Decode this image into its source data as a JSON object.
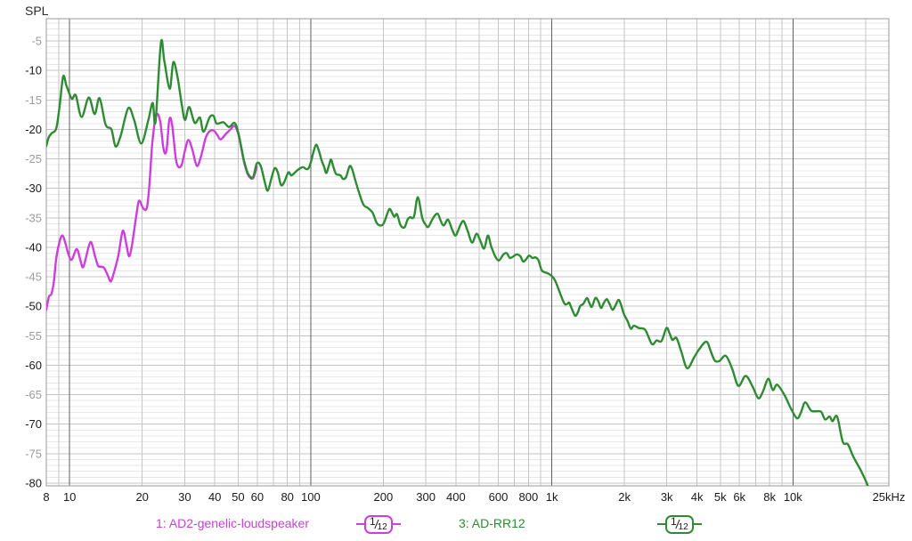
{
  "title": "SPL",
  "colors": {
    "series1": "#cc3edd",
    "series2": "#2e8b33",
    "label_dark": "#1a1a1a",
    "label_gray": "#9b9b9b",
    "grid_minor": "#e8e8e8",
    "grid_major": "#c5c5c5",
    "grid_decade": "#5f5f5f",
    "plot_border": "#9a9a9a"
  },
  "legend": {
    "items": [
      {
        "label": "1: AD2-genelic-loudspeaker",
        "badge_numerator": "1",
        "badge_denominator": "12",
        "color": "#cc3edd"
      },
      {
        "label": "3: AD-RR12",
        "badge_numerator": "1",
        "badge_denominator": "12",
        "color": "#2e8b33"
      }
    ]
  },
  "chart_data": {
    "type": "line",
    "title": "SPL",
    "x_axis": {
      "scale": "log",
      "min": 8,
      "max": 25000,
      "unit": "Hz",
      "tick_labels": [
        {
          "f": 8,
          "label": "8"
        },
        {
          "f": 10,
          "label": "10"
        },
        {
          "f": 20,
          "label": "20"
        },
        {
          "f": 30,
          "label": "30"
        },
        {
          "f": 40,
          "label": "40"
        },
        {
          "f": 50,
          "label": "50"
        },
        {
          "f": 60,
          "label": "60"
        },
        {
          "f": 80,
          "label": "80"
        },
        {
          "f": 100,
          "label": "100"
        },
        {
          "f": 200,
          "label": "200"
        },
        {
          "f": 300,
          "label": "300"
        },
        {
          "f": 400,
          "label": "400"
        },
        {
          "f": 600,
          "label": "600"
        },
        {
          "f": 800,
          "label": "800"
        },
        {
          "f": 1000,
          "label": "1k"
        },
        {
          "f": 2000,
          "label": "2k"
        },
        {
          "f": 3000,
          "label": "3k"
        },
        {
          "f": 4000,
          "label": "4k"
        },
        {
          "f": 5000,
          "label": "5k"
        },
        {
          "f": 6000,
          "label": "6k"
        },
        {
          "f": 8000,
          "label": "8k"
        },
        {
          "f": 10000,
          "label": "10k"
        },
        {
          "f": 25000,
          "label": "25kHz"
        }
      ],
      "gridlines": [
        9,
        10,
        20,
        30,
        40,
        50,
        60,
        70,
        80,
        90,
        100,
        200,
        300,
        400,
        500,
        600,
        700,
        800,
        900,
        1000,
        2000,
        3000,
        4000,
        5000,
        6000,
        7000,
        8000,
        9000,
        10000,
        20000
      ],
      "emphasized_gridlines": [
        10,
        100,
        1000,
        10000
      ]
    },
    "y_axis": {
      "unit": "dB SPL",
      "min": -80.45,
      "max": -1.2,
      "major_step": 5,
      "minor_step": 1,
      "tick_values": [
        -5,
        -10,
        -15,
        -20,
        -25,
        -30,
        -35,
        -40,
        -45,
        -50,
        -55,
        -60,
        -65,
        -70,
        -75,
        -80
      ]
    },
    "series": [
      {
        "name": "1: AD2-genelic-loudspeaker",
        "color": "#cc3edd",
        "smoothing": "1/12",
        "points": [
          [
            8.0,
            -50.6
          ],
          [
            8.2,
            -48.4
          ],
          [
            8.4,
            -47.9
          ],
          [
            8.6,
            -45.8
          ],
          [
            8.8,
            -41.8
          ],
          [
            9.1,
            -38.9
          ],
          [
            9.35,
            -38.0
          ],
          [
            9.6,
            -39.3
          ],
          [
            9.9,
            -41.3
          ],
          [
            10.2,
            -42.1
          ],
          [
            10.7,
            -40.3
          ],
          [
            11.1,
            -42.3
          ],
          [
            11.4,
            -43.3
          ],
          [
            12.0,
            -39.8
          ],
          [
            12.3,
            -39.2
          ],
          [
            12.7,
            -41.3
          ],
          [
            13.1,
            -43.1
          ],
          [
            13.5,
            -43.3
          ],
          [
            13.9,
            -43.5
          ],
          [
            14.4,
            -44.8
          ],
          [
            14.8,
            -45.8
          ],
          [
            15.2,
            -44.5
          ],
          [
            15.9,
            -41.5
          ],
          [
            16.6,
            -37.2
          ],
          [
            17.2,
            -39.6
          ],
          [
            17.6,
            -41.5
          ],
          [
            18.0,
            -40.4
          ],
          [
            18.4,
            -37.9
          ],
          [
            18.9,
            -34.6
          ],
          [
            19.4,
            -32.1
          ],
          [
            20.2,
            -33.4
          ],
          [
            20.9,
            -33.3
          ],
          [
            21.4,
            -29.5
          ],
          [
            22.0,
            -22.5
          ],
          [
            22.8,
            -17.6
          ],
          [
            23.7,
            -18.5
          ],
          [
            24.5,
            -23.3
          ],
          [
            25.2,
            -23.6
          ],
          [
            25.9,
            -18.4
          ],
          [
            26.6,
            -19.2
          ],
          [
            27.7,
            -25.5
          ],
          [
            29.0,
            -26.2
          ],
          [
            30.1,
            -23.5
          ],
          [
            31.1,
            -21.8
          ],
          [
            32.3,
            -23.5
          ],
          [
            33.7,
            -26.2
          ],
          [
            35.1,
            -24.5
          ],
          [
            36.6,
            -21.5
          ],
          [
            38.1,
            -20.3
          ],
          [
            39.6,
            -20.2
          ],
          [
            40.9,
            -20.9
          ],
          [
            42.3,
            -21.7
          ],
          [
            44.6,
            -20.7
          ],
          [
            46.5,
            -20.0
          ],
          [
            48.3,
            -19.4
          ],
          [
            50.0,
            -20.7
          ],
          [
            51.5,
            -23.2
          ],
          [
            53.0,
            -25.7
          ],
          [
            55.1,
            -27.8
          ],
          [
            57.6,
            -28.3
          ],
          [
            59.7,
            -26.4
          ]
        ]
      },
      {
        "name": "3: AD-RR12",
        "color": "#2e8b33",
        "smoothing": "1/12",
        "points": [
          [
            8.0,
            -22.8
          ],
          [
            8.2,
            -21.3
          ],
          [
            8.45,
            -20.6
          ],
          [
            8.8,
            -19.8
          ],
          [
            9.1,
            -15.8
          ],
          [
            9.4,
            -11.0
          ],
          [
            9.7,
            -12.6
          ],
          [
            10.2,
            -14.8
          ],
          [
            10.6,
            -14.2
          ],
          [
            11.2,
            -17.9
          ],
          [
            12.0,
            -14.6
          ],
          [
            12.7,
            -17.4
          ],
          [
            13.3,
            -14.7
          ],
          [
            14.1,
            -19.2
          ],
          [
            14.9,
            -20.0
          ],
          [
            15.5,
            -22.9
          ],
          [
            16.3,
            -21.0
          ],
          [
            17.5,
            -16.4
          ],
          [
            18.5,
            -18.4
          ],
          [
            19.8,
            -22.4
          ],
          [
            21.2,
            -18.4
          ],
          [
            22.1,
            -15.5
          ],
          [
            22.7,
            -18.7
          ],
          [
            23.9,
            -5.3
          ],
          [
            24.7,
            -8.4
          ],
          [
            26.0,
            -13.1
          ],
          [
            26.9,
            -8.6
          ],
          [
            28.0,
            -11.1
          ],
          [
            29.2,
            -15.9
          ],
          [
            30.1,
            -18.4
          ],
          [
            31.3,
            -16.2
          ],
          [
            33.0,
            -18.9
          ],
          [
            34.7,
            -18.0
          ],
          [
            35.9,
            -20.4
          ],
          [
            38.0,
            -18.0
          ],
          [
            39.5,
            -17.7
          ],
          [
            40.7,
            -19.0
          ],
          [
            43.4,
            -18.8
          ],
          [
            45.8,
            -19.6
          ],
          [
            48.3,
            -18.9
          ],
          [
            50.0,
            -20.5
          ],
          [
            51.5,
            -23.0
          ],
          [
            53.0,
            -25.5
          ],
          [
            55.1,
            -27.6
          ],
          [
            57.6,
            -28.1
          ],
          [
            59.7,
            -25.8
          ],
          [
            62.0,
            -26.2
          ],
          [
            64.5,
            -29.0
          ],
          [
            66.3,
            -30.4
          ],
          [
            68.5,
            -28.5
          ],
          [
            70.8,
            -26.6
          ],
          [
            73.0,
            -27.3
          ],
          [
            75.2,
            -29.4
          ],
          [
            77.5,
            -29.0
          ],
          [
            80.7,
            -27.3
          ],
          [
            83.0,
            -27.8
          ],
          [
            86.0,
            -27.3
          ],
          [
            88.8,
            -26.8
          ],
          [
            92.6,
            -26.4
          ],
          [
            95.5,
            -26.7
          ],
          [
            98.0,
            -26.6
          ],
          [
            100.5,
            -25.3
          ],
          [
            102.7,
            -23.8
          ],
          [
            105.3,
            -22.6
          ],
          [
            108.0,
            -23.6
          ],
          [
            111.0,
            -25.3
          ],
          [
            113.5,
            -26.3
          ],
          [
            116.0,
            -27.4
          ],
          [
            119.0,
            -26.1
          ],
          [
            121.4,
            -25.1
          ],
          [
            124.0,
            -26.3
          ],
          [
            127.0,
            -27.5
          ],
          [
            130.0,
            -27.7
          ],
          [
            133.0,
            -27.8
          ],
          [
            136.0,
            -28.4
          ],
          [
            140.0,
            -28.1
          ],
          [
            144.8,
            -26.3
          ],
          [
            148.0,
            -26.6
          ],
          [
            152.0,
            -28.2
          ],
          [
            158.8,
            -30.8
          ],
          [
            165.6,
            -32.8
          ],
          [
            172.0,
            -33.3
          ],
          [
            180.3,
            -34.1
          ],
          [
            188.0,
            -35.9
          ],
          [
            196.2,
            -36.3
          ],
          [
            202.0,
            -35.7
          ],
          [
            211.0,
            -33.6
          ],
          [
            216.0,
            -33.9
          ],
          [
            222.0,
            -34.8
          ],
          [
            228.0,
            -34.4
          ],
          [
            236.0,
            -36.3
          ],
          [
            245.0,
            -36.6
          ],
          [
            252.0,
            -35.3
          ],
          [
            258.0,
            -34.9
          ],
          [
            268.0,
            -34.8
          ],
          [
            278.0,
            -31.5
          ],
          [
            290.0,
            -35.0
          ],
          [
            300.0,
            -36.2
          ],
          [
            308.0,
            -36.5
          ],
          [
            322.0,
            -35.0
          ],
          [
            336.0,
            -34.3
          ],
          [
            346.0,
            -35.5
          ],
          [
            356.0,
            -36.3
          ],
          [
            371.0,
            -35.3
          ],
          [
            386.0,
            -37.0
          ],
          [
            398.0,
            -38.0
          ],
          [
            410.0,
            -37.0
          ],
          [
            420.0,
            -36.0
          ],
          [
            432.0,
            -35.6
          ],
          [
            449.0,
            -37.4
          ],
          [
            467.0,
            -39.2
          ],
          [
            487.0,
            -37.7
          ],
          [
            505.0,
            -38.9
          ],
          [
            524.0,
            -40.2
          ],
          [
            543.0,
            -38.0
          ],
          [
            560.0,
            -39.8
          ],
          [
            585.0,
            -41.7
          ],
          [
            605.0,
            -42.2
          ],
          [
            630.0,
            -41.2
          ],
          [
            650.0,
            -41.0
          ],
          [
            670.0,
            -41.8
          ],
          [
            695.0,
            -41.5
          ],
          [
            715.0,
            -41.2
          ],
          [
            740.0,
            -41.5
          ],
          [
            760.0,
            -42.4
          ],
          [
            780.0,
            -42.1
          ],
          [
            805.0,
            -41.4
          ],
          [
            830.0,
            -41.8
          ],
          [
            855.0,
            -41.7
          ],
          [
            880.0,
            -42.2
          ],
          [
            905.0,
            -43.8
          ],
          [
            930.0,
            -44.2
          ],
          [
            960.0,
            -44.4
          ],
          [
            1002,
            -44.9
          ],
          [
            1030,
            -45.6
          ],
          [
            1060,
            -46.8
          ],
          [
            1096,
            -48.4
          ],
          [
            1130,
            -49.6
          ],
          [
            1160,
            -49.6
          ],
          [
            1180,
            -49.4
          ],
          [
            1210,
            -50.4
          ],
          [
            1249,
            -51.6
          ],
          [
            1280,
            -51.1
          ],
          [
            1310,
            -50.0
          ],
          [
            1350,
            -49.6
          ],
          [
            1398,
            -48.6
          ],
          [
            1430,
            -49.4
          ],
          [
            1465,
            -50.1
          ],
          [
            1516,
            -48.6
          ],
          [
            1560,
            -49.2
          ],
          [
            1600,
            -50.3
          ],
          [
            1645,
            -49.4
          ],
          [
            1690,
            -48.8
          ],
          [
            1735,
            -49.6
          ],
          [
            1785,
            -50.6
          ],
          [
            1835,
            -49.9
          ],
          [
            1890,
            -48.9
          ],
          [
            1935,
            -49.7
          ],
          [
            1990,
            -51.3
          ],
          [
            2060,
            -52.5
          ],
          [
            2127,
            -53.8
          ],
          [
            2190,
            -53.3
          ],
          [
            2300,
            -53.7
          ],
          [
            2440,
            -54.0
          ],
          [
            2600,
            -56.4
          ],
          [
            2720,
            -55.8
          ],
          [
            2850,
            -55.9
          ],
          [
            2987,
            -53.7
          ],
          [
            3080,
            -54.6
          ],
          [
            3163,
            -55.7
          ],
          [
            3290,
            -55.4
          ],
          [
            3450,
            -57.8
          ],
          [
            3645,
            -60.5
          ],
          [
            3900,
            -58.6
          ],
          [
            4100,
            -57.2
          ],
          [
            4380,
            -56.0
          ],
          [
            4560,
            -57.6
          ],
          [
            4740,
            -59.2
          ],
          [
            4950,
            -59.3
          ],
          [
            5266,
            -58.4
          ],
          [
            5600,
            -60.6
          ],
          [
            5940,
            -63.5
          ],
          [
            6368,
            -61.8
          ],
          [
            6800,
            -63.6
          ],
          [
            7190,
            -65.6
          ],
          [
            7500,
            -64.5
          ],
          [
            7910,
            -62.3
          ],
          [
            8250,
            -64.2
          ],
          [
            8600,
            -63.3
          ],
          [
            9210,
            -65.0
          ],
          [
            9800,
            -67.3
          ],
          [
            10400,
            -69.0
          ],
          [
            10800,
            -68.0
          ],
          [
            11240,
            -66.3
          ],
          [
            11900,
            -67.7
          ],
          [
            12500,
            -67.8
          ],
          [
            13100,
            -67.9
          ],
          [
            13600,
            -69.2
          ],
          [
            14200,
            -68.7
          ],
          [
            14600,
            -69.5
          ],
          [
            15250,
            -68.7
          ],
          [
            16100,
            -73.0
          ],
          [
            16900,
            -73.4
          ],
          [
            17800,
            -75.5
          ],
          [
            19100,
            -77.8
          ],
          [
            19900,
            -79.3
          ],
          [
            20600,
            -80.8
          ]
        ]
      }
    ]
  }
}
